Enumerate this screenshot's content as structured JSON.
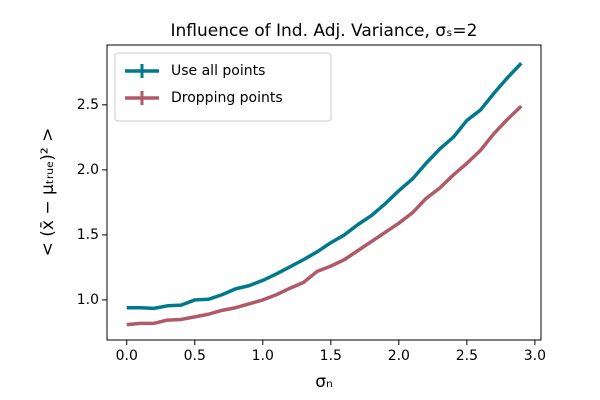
{
  "chart_data": {
    "type": "line",
    "title": "Influence of Ind. Adj. Variance, σₛ=2",
    "xlabel": "σₙ",
    "ylabel": "< (x̄ − μₜᵣᵤₑ)² >",
    "x": [
      0,
      0.1,
      0.2,
      0.3,
      0.4,
      0.5,
      0.6,
      0.7,
      0.8,
      0.9,
      1.0,
      1.1,
      1.2,
      1.3,
      1.4,
      1.5,
      1.6,
      1.7,
      1.8,
      1.9,
      2.0,
      2.1,
      2.2,
      2.3,
      2.4,
      2.5,
      2.6,
      2.7,
      2.8,
      2.9
    ],
    "series": [
      {
        "name": "Use all points",
        "color": "#00798c",
        "values": [
          0.94,
          0.94,
          0.935,
          0.955,
          0.96,
          1.0,
          1.005,
          1.04,
          1.085,
          1.11,
          1.15,
          1.2,
          1.255,
          1.31,
          1.37,
          1.44,
          1.5,
          1.58,
          1.65,
          1.74,
          1.84,
          1.93,
          2.05,
          2.16,
          2.25,
          2.38,
          2.46,
          2.59,
          2.71,
          2.82
        ]
      },
      {
        "name": "Dropping points",
        "color": "#b05a68",
        "values": [
          0.81,
          0.82,
          0.82,
          0.845,
          0.85,
          0.87,
          0.89,
          0.92,
          0.94,
          0.97,
          1.0,
          1.04,
          1.09,
          1.135,
          1.22,
          1.26,
          1.31,
          1.38,
          1.45,
          1.52,
          1.59,
          1.67,
          1.78,
          1.86,
          1.96,
          2.05,
          2.15,
          2.28,
          2.39,
          2.49
        ]
      }
    ],
    "xlim": [
      -0.145,
      3.045
    ],
    "ylim": [
      0.692,
      2.96
    ],
    "xticks": [
      {
        "value": 0,
        "label": "0.0"
      },
      0.5,
      {
        "value": 1,
        "label": "1.0"
      },
      1.5,
      {
        "value": 2,
        "label": "2.0"
      },
      2.5,
      {
        "value": 3,
        "label": "3.0"
      }
    ],
    "yticks": [
      {
        "value": 1,
        "label": "1.0"
      },
      1.5,
      {
        "value": 2,
        "label": "2.0"
      },
      2.5
    ],
    "grid": false,
    "legend": "upper left"
  }
}
